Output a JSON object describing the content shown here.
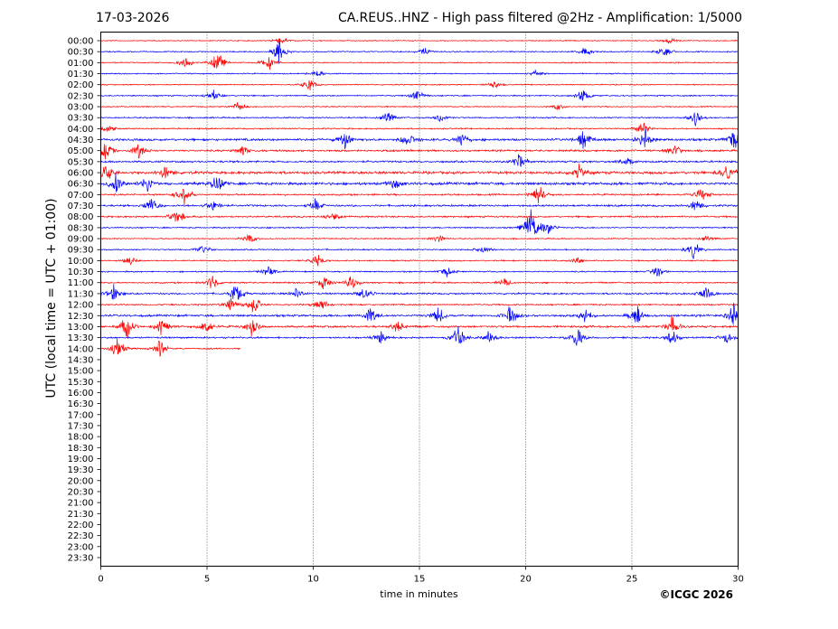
{
  "header": {
    "date": "17-03-2026",
    "title": "CA.REUS..HNZ - High pass filtered @2Hz - Amplification: 1/5000"
  },
  "copyright": "©ICGC 2026",
  "chart_data": {
    "type": "line",
    "xlabel": "time in minutes",
    "ylabel": "UTC (local time = UTC + 01:00)",
    "xlim": [
      0,
      30
    ],
    "x_ticks": [
      0,
      5,
      10,
      15,
      20,
      25,
      30
    ],
    "grid": "vertical dotted lines at 5, 10, 15, 20, 25",
    "row_labels": [
      "00:00",
      "00:30",
      "01:00",
      "01:30",
      "02:00",
      "02:30",
      "03:00",
      "03:30",
      "04:00",
      "04:30",
      "05:00",
      "05:30",
      "06:00",
      "06:30",
      "07:00",
      "07:30",
      "08:00",
      "08:30",
      "09:00",
      "09:30",
      "10:00",
      "10:30",
      "11:00",
      "11:30",
      "12:00",
      "12:30",
      "13:00",
      "13:30",
      "14:00",
      "14:30",
      "15:00",
      "15:30",
      "16:00",
      "16:30",
      "17:00",
      "17:30",
      "18:00",
      "18:30",
      "19:00",
      "19:30",
      "20:00",
      "20:30",
      "21:00",
      "21:30",
      "22:00",
      "22:30",
      "23:00",
      "23:30"
    ],
    "trace_colors": [
      "#ff0000",
      "#0000ff"
    ],
    "traces": [
      {
        "row": "00:00",
        "color": "#ff0000",
        "end_min": 30,
        "level": 0.25,
        "events": [
          [
            8.5,
            0.4
          ],
          [
            26.8,
            0.3
          ]
        ]
      },
      {
        "row": "00:30",
        "color": "#0000ff",
        "end_min": 30,
        "level": 0.3,
        "events": [
          [
            8.4,
            1.0
          ],
          [
            15.2,
            0.35
          ],
          [
            22.8,
            0.5
          ],
          [
            26.5,
            0.6
          ]
        ]
      },
      {
        "row": "01:00",
        "color": "#ff0000",
        "end_min": 30,
        "level": 0.3,
        "events": [
          [
            4.0,
            0.5
          ],
          [
            5.5,
            1.0
          ],
          [
            7.9,
            0.9
          ]
        ]
      },
      {
        "row": "01:30",
        "color": "#0000ff",
        "end_min": 30,
        "level": 0.3,
        "events": [
          [
            10.2,
            0.4
          ],
          [
            20.5,
            0.3
          ]
        ]
      },
      {
        "row": "02:00",
        "color": "#ff0000",
        "end_min": 30,
        "level": 0.3,
        "events": [
          [
            9.8,
            0.6
          ],
          [
            18.5,
            0.35
          ]
        ]
      },
      {
        "row": "02:30",
        "color": "#0000ff",
        "end_min": 30,
        "level": 0.35,
        "events": [
          [
            5.3,
            0.4
          ],
          [
            14.9,
            0.5
          ],
          [
            22.7,
            0.7
          ]
        ]
      },
      {
        "row": "03:00",
        "color": "#ff0000",
        "end_min": 30,
        "level": 0.3,
        "events": [
          [
            6.5,
            0.5
          ],
          [
            21.5,
            0.3
          ]
        ]
      },
      {
        "row": "03:30",
        "color": "#0000ff",
        "end_min": 30,
        "level": 0.35,
        "events": [
          [
            13.5,
            0.6
          ],
          [
            16.0,
            0.5
          ],
          [
            28.0,
            0.7
          ]
        ]
      },
      {
        "row": "04:00",
        "color": "#ff0000",
        "end_min": 30,
        "level": 0.35,
        "events": [
          [
            0.3,
            0.5
          ],
          [
            25.5,
            0.6
          ]
        ]
      },
      {
        "row": "04:30",
        "color": "#0000ff",
        "end_min": 30,
        "level": 0.6,
        "events": [
          [
            11.5,
            0.7
          ],
          [
            14.5,
            0.8
          ],
          [
            17.0,
            0.7
          ],
          [
            22.7,
            0.9
          ],
          [
            25.6,
            1.0
          ],
          [
            29.8,
            0.8
          ]
        ]
      },
      {
        "row": "05:00",
        "color": "#ff0000",
        "end_min": 30,
        "level": 0.5,
        "events": [
          [
            0.2,
            1.0
          ],
          [
            1.8,
            0.7
          ],
          [
            6.7,
            0.5
          ],
          [
            27.0,
            0.6
          ]
        ]
      },
      {
        "row": "05:30",
        "color": "#0000ff",
        "end_min": 30,
        "level": 0.5,
        "events": [
          [
            19.7,
            0.8
          ],
          [
            24.8,
            0.6
          ]
        ]
      },
      {
        "row": "06:00",
        "color": "#ff0000",
        "end_min": 30,
        "level": 0.7,
        "events": [
          [
            0.3,
            0.8
          ],
          [
            3.0,
            0.7
          ],
          [
            22.5,
            0.6
          ],
          [
            29.5,
            1.0
          ]
        ]
      },
      {
        "row": "06:30",
        "color": "#0000ff",
        "end_min": 30,
        "level": 0.7,
        "events": [
          [
            0.7,
            1.0
          ],
          [
            2.2,
            0.8
          ],
          [
            5.5,
            0.9
          ],
          [
            13.8,
            0.6
          ]
        ]
      },
      {
        "row": "07:00",
        "color": "#ff0000",
        "end_min": 30,
        "level": 0.45,
        "events": [
          [
            3.9,
            0.9
          ],
          [
            20.6,
            1.0
          ],
          [
            28.3,
            0.6
          ]
        ]
      },
      {
        "row": "07:30",
        "color": "#0000ff",
        "end_min": 30,
        "level": 0.5,
        "events": [
          [
            2.4,
            0.8
          ],
          [
            5.3,
            0.6
          ],
          [
            10.1,
            0.5
          ],
          [
            28.0,
            0.6
          ]
        ]
      },
      {
        "row": "08:00",
        "color": "#ff0000",
        "end_min": 30,
        "level": 0.45,
        "events": [
          [
            3.6,
            0.8
          ],
          [
            11.0,
            0.4
          ]
        ]
      },
      {
        "row": "08:30",
        "color": "#0000ff",
        "end_min": 30,
        "level": 0.35,
        "events": [
          [
            20.2,
            1.6
          ],
          [
            21.0,
            0.8
          ]
        ]
      },
      {
        "row": "09:00",
        "color": "#ff0000",
        "end_min": 30,
        "level": 0.3,
        "events": [
          [
            7.0,
            0.5
          ],
          [
            15.9,
            0.4
          ],
          [
            28.5,
            0.3
          ]
        ]
      },
      {
        "row": "09:30",
        "color": "#0000ff",
        "end_min": 30,
        "level": 0.35,
        "events": [
          [
            4.8,
            0.5
          ],
          [
            18.0,
            0.4
          ],
          [
            27.9,
            0.8
          ]
        ]
      },
      {
        "row": "10:00",
        "color": "#ff0000",
        "end_min": 30,
        "level": 0.35,
        "events": [
          [
            1.4,
            0.4
          ],
          [
            10.2,
            0.6
          ],
          [
            22.5,
            0.4
          ]
        ]
      },
      {
        "row": "10:30",
        "color": "#0000ff",
        "end_min": 30,
        "level": 0.35,
        "events": [
          [
            7.9,
            0.5
          ],
          [
            16.3,
            0.4
          ],
          [
            26.2,
            0.5
          ]
        ]
      },
      {
        "row": "11:00",
        "color": "#ff0000",
        "end_min": 30,
        "level": 0.4,
        "events": [
          [
            5.2,
            0.7
          ],
          [
            10.5,
            0.8
          ],
          [
            11.8,
            0.7
          ],
          [
            19.0,
            0.4
          ]
        ]
      },
      {
        "row": "11:30",
        "color": "#0000ff",
        "end_min": 30,
        "level": 0.45,
        "events": [
          [
            0.6,
            0.8
          ],
          [
            6.4,
            0.9
          ],
          [
            9.2,
            0.5
          ],
          [
            12.4,
            0.6
          ],
          [
            28.5,
            0.8
          ]
        ]
      },
      {
        "row": "12:00",
        "color": "#ff0000",
        "end_min": 30,
        "level": 0.4,
        "events": [
          [
            6.1,
            0.6
          ],
          [
            7.2,
            0.9
          ],
          [
            10.4,
            0.5
          ]
        ]
      },
      {
        "row": "12:30",
        "color": "#0000ff",
        "end_min": 30,
        "level": 0.55,
        "events": [
          [
            12.7,
            0.7
          ],
          [
            15.9,
            0.8
          ],
          [
            19.3,
            0.9
          ],
          [
            22.8,
            0.7
          ],
          [
            25.2,
            0.9
          ],
          [
            29.8,
            1.0
          ]
        ]
      },
      {
        "row": "13:00",
        "color": "#ff0000",
        "end_min": 30,
        "level": 0.55,
        "events": [
          [
            1.2,
            1.0
          ],
          [
            2.9,
            0.9
          ],
          [
            5.0,
            0.7
          ],
          [
            7.1,
            0.7
          ],
          [
            14.0,
            0.5
          ],
          [
            26.9,
            0.8
          ]
        ]
      },
      {
        "row": "13:30",
        "color": "#0000ff",
        "end_min": 30,
        "level": 0.45,
        "events": [
          [
            13.2,
            0.6
          ],
          [
            16.8,
            1.2
          ],
          [
            18.3,
            0.6
          ],
          [
            22.4,
            1.0
          ],
          [
            26.9,
            0.7
          ],
          [
            29.5,
            0.6
          ]
        ]
      },
      {
        "row": "14:00",
        "color": "#ff0000",
        "end_min": 6.6,
        "level": 0.4,
        "events": [
          [
            0.8,
            0.9
          ],
          [
            2.8,
            0.8
          ]
        ]
      }
    ]
  }
}
